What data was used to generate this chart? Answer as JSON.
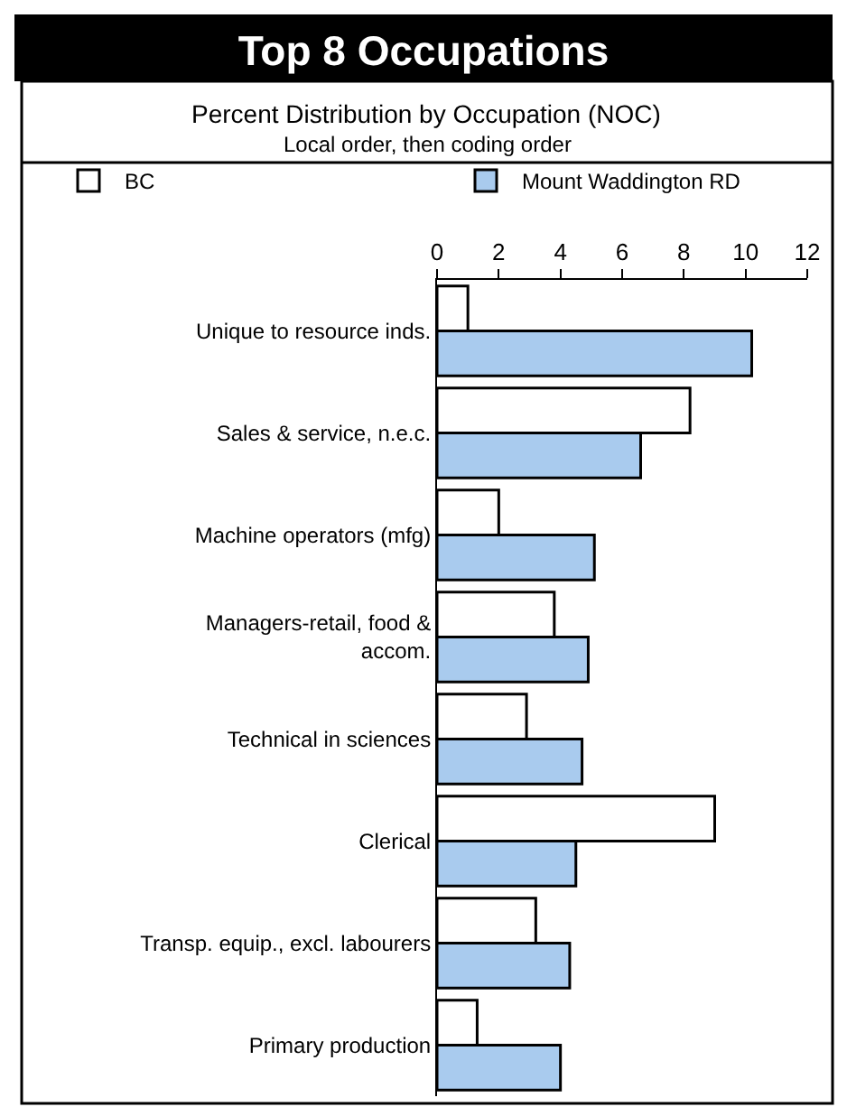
{
  "chart_data": {
    "type": "bar",
    "orientation": "horizontal",
    "title": "Top 8 Occupations",
    "subtitle": "Percent Distribution by Occupation (NOC)",
    "annotations": [
      "Local order, then coding order"
    ],
    "categories": [
      "Unique to resource inds.",
      "Sales & service, n.e.c.",
      "Machine operators (mfg)",
      "Managers-retail, food &\naccom.",
      "Technical in sciences",
      "Clerical",
      "Transp. equip., excl. labourers",
      "Primary production"
    ],
    "series": [
      {
        "name": "BC",
        "color": "#ffffff",
        "values": [
          1.0,
          8.2,
          2.0,
          3.8,
          2.9,
          9.0,
          3.2,
          1.3
        ]
      },
      {
        "name": "Mount Waddington RD",
        "color": "#a9cbee",
        "values": [
          10.2,
          6.6,
          5.1,
          4.9,
          4.7,
          4.5,
          4.3,
          4.0
        ]
      }
    ],
    "xlim": [
      0,
      12
    ],
    "xticks": [
      0,
      2,
      4,
      6,
      8,
      10,
      12
    ],
    "legend": "top"
  }
}
